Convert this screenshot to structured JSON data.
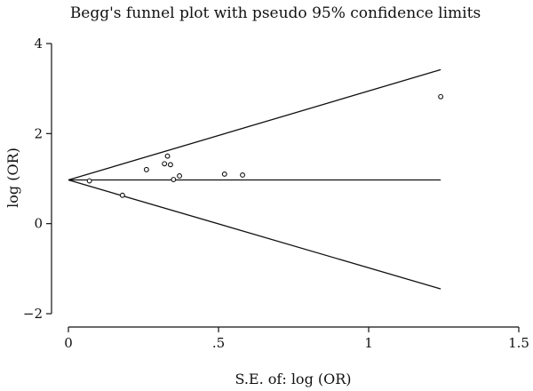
{
  "chart_data": {
    "type": "scatter",
    "title": "Begg's funnel plot with pseudo 95% confidence limits",
    "xlabel": "S.E. of: log (OR)",
    "ylabel": "log (OR)",
    "xlim": [
      0,
      1.5
    ],
    "ylim": [
      -2,
      4
    ],
    "xticks": [
      0,
      0.5,
      1,
      1.5
    ],
    "xtick_labels": [
      "0",
      ".5",
      "1",
      "1.5"
    ],
    "yticks": [
      -2,
      0,
      2,
      4
    ],
    "ytick_labels": [
      "−2",
      "0",
      "2",
      "4"
    ],
    "grid": false,
    "pooled_estimate": 0.97,
    "limit_lines": {
      "se_max": 1.24,
      "upper_at_se_max": 3.42,
      "lower_at_se_max": -1.45
    },
    "points": [
      {
        "x": 0.07,
        "y": 0.95
      },
      {
        "x": 0.18,
        "y": 0.63
      },
      {
        "x": 0.26,
        "y": 1.2
      },
      {
        "x": 0.32,
        "y": 1.33
      },
      {
        "x": 0.33,
        "y": 1.5
      },
      {
        "x": 0.34,
        "y": 1.31
      },
      {
        "x": 0.35,
        "y": 0.98
      },
      {
        "x": 0.37,
        "y": 1.06
      },
      {
        "x": 0.52,
        "y": 1.1
      },
      {
        "x": 0.58,
        "y": 1.08
      },
      {
        "x": 1.24,
        "y": 2.82
      }
    ]
  }
}
